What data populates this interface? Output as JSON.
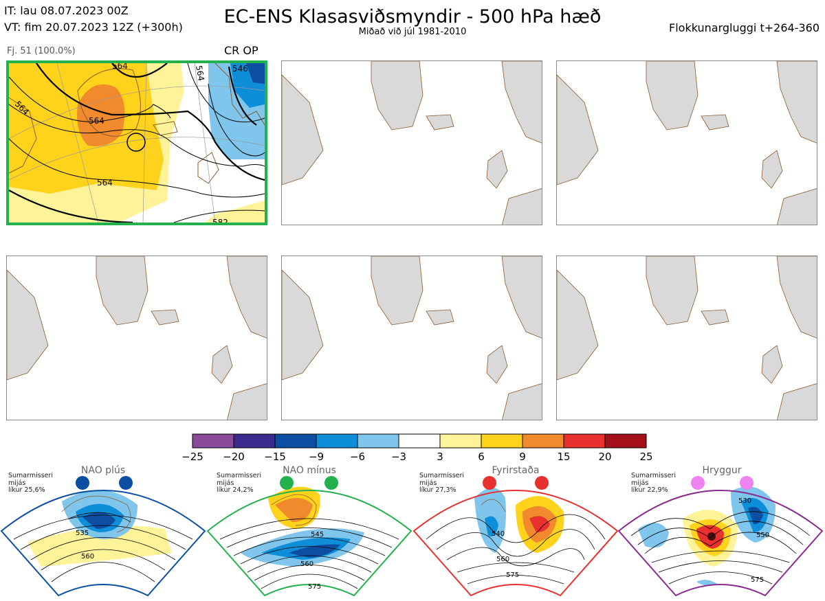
{
  "header": {
    "it": "IT: lau 08.07.2023 00Z",
    "vt": "VT: fim 20.07.2023 12Z  (+300h)",
    "title": "EC-ENS Klasasviðsmyndir - 500 hPa hæð",
    "subtitle": "Miðað við júl 1981-2010",
    "window": "Flokkunargluggi t+264-360"
  },
  "panel1": {
    "member": "Fj. 51 (100.0%)",
    "regime_tag": "CR OP",
    "border_color": "#22b14c",
    "contour_labels": [
      "564",
      "564",
      "564",
      "564",
      "564",
      "546",
      "582"
    ]
  },
  "colorbar": {
    "ticks": [
      "−25",
      "−20",
      "−15",
      "−9",
      "−6",
      "−3",
      "3",
      "6",
      "9",
      "15",
      "20",
      "25"
    ],
    "colors": [
      "#8a4a9a",
      "#3d2a8e",
      "#0b4ea2",
      "#0e8dd8",
      "#7fc5ec",
      "#ffffff",
      "#fff39a",
      "#ffd21c",
      "#f08a2c",
      "#e8302e",
      "#a3101a"
    ]
  },
  "regimes": [
    {
      "name": "NAO plús",
      "note": [
        "Sumarmisseri",
        "mijás",
        "líkur 25,6%"
      ],
      "color": "#0b4ea2",
      "labels": [
        "535",
        "560"
      ]
    },
    {
      "name": "NAO mínus",
      "note": [
        "Sumarmisseri",
        "mijás",
        "líkur 24,2%"
      ],
      "color": "#22b14c",
      "labels": [
        "545",
        "560",
        "575"
      ]
    },
    {
      "name": "Fyrirstaða",
      "note": [
        "Sumarmisseri",
        "mijás",
        "líkur 27,3%"
      ],
      "color": "#e8302e",
      "labels": [
        "540",
        "560",
        "575"
      ]
    },
    {
      "name": "Hryggur",
      "note": [
        "Sumarmisseri",
        "mijás",
        "líkur 22,9%"
      ],
      "color": "#8a2a8e",
      "dot": "#ee82ee",
      "labels": [
        "530",
        "550",
        "575"
      ]
    }
  ]
}
